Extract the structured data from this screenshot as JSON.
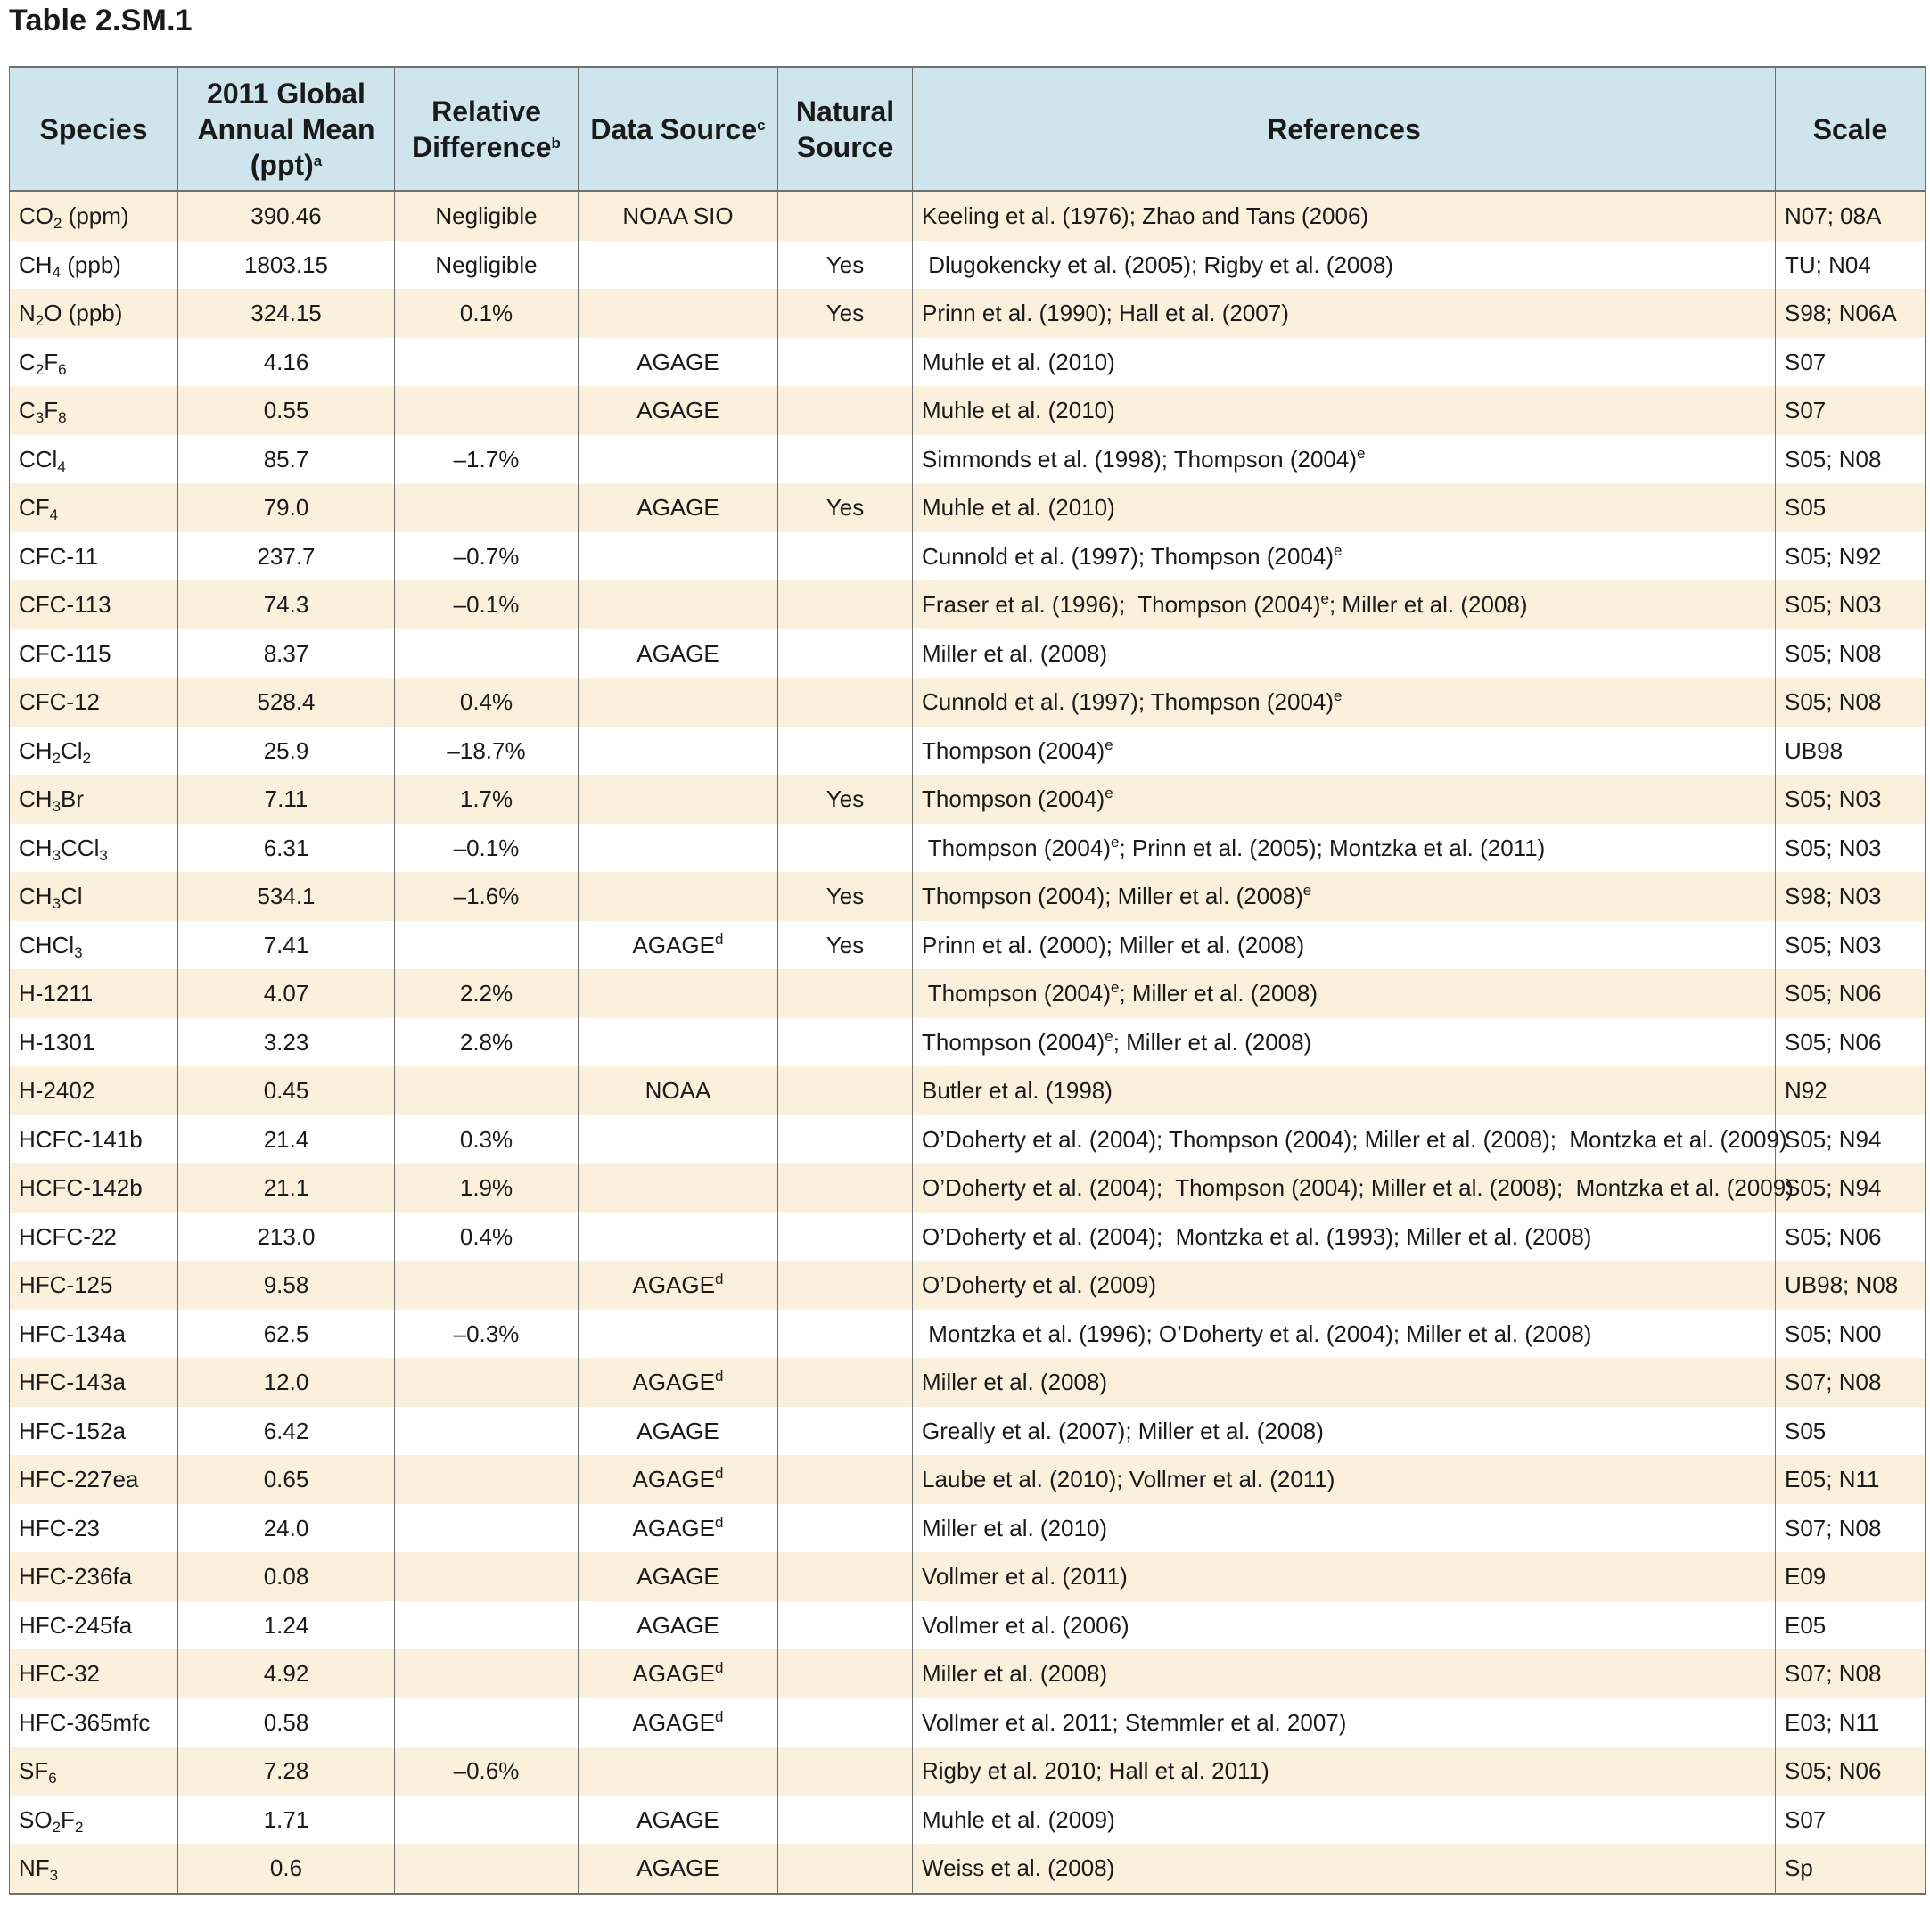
{
  "title": "Table 2.SM.1",
  "headers": {
    "species": "Species",
    "mean": "2011 Global Annual Mean (ppt)",
    "mean_sup": "a",
    "reldiff": "Relative Difference",
    "reldiff_sup": "b",
    "source": "Data Source",
    "source_sup": "c",
    "natural": "Natural Source",
    "refs": "References",
    "scale": "Scale"
  },
  "rows": [
    {
      "species": [
        "CO",
        {
          "sub": "2"
        },
        " (ppm)"
      ],
      "mean": "390.46",
      "reldiff": "Negligible",
      "source": [
        "NOAA SIO"
      ],
      "natural": "",
      "refs": [
        "Keeling et al. (1976); Zhao and Tans (2006)"
      ],
      "scale": "N07; 08A"
    },
    {
      "species": [
        "CH",
        {
          "sub": "4"
        },
        " (ppb)"
      ],
      "mean": "1803.15",
      "reldiff": "Negligible",
      "source": [
        ""
      ],
      "natural": "Yes",
      "refs": [
        " Dlugokencky et al. (2005); Rigby et al. (2008)"
      ],
      "scale": "TU; N04"
    },
    {
      "species": [
        "N",
        {
          "sub": "2"
        },
        "O (ppb)"
      ],
      "mean": "324.15",
      "reldiff": "0.1%",
      "source": [
        ""
      ],
      "natural": "Yes",
      "refs": [
        "Prinn et al. (1990); Hall et al. (2007)"
      ],
      "scale": "S98; N06A"
    },
    {
      "species": [
        "C",
        {
          "sub": "2"
        },
        "F",
        {
          "sub": "6"
        }
      ],
      "mean": "4.16",
      "reldiff": "",
      "source": [
        "AGAGE"
      ],
      "natural": "",
      "refs": [
        "Muhle et al. (2010)"
      ],
      "scale": "S07"
    },
    {
      "species": [
        "C",
        {
          "sub": "3"
        },
        "F",
        {
          "sub": "8"
        }
      ],
      "mean": "0.55",
      "reldiff": "",
      "source": [
        "AGAGE"
      ],
      "natural": "",
      "refs": [
        "Muhle et al. (2010)"
      ],
      "scale": "S07"
    },
    {
      "species": [
        "CCl",
        {
          "sub": "4"
        }
      ],
      "mean": "85.7",
      "reldiff": "–1.7%",
      "source": [
        ""
      ],
      "natural": "",
      "refs": [
        "Simmonds et al. (1998); Thompson (2004)",
        {
          "sup": "e"
        }
      ],
      "scale": "S05; N08"
    },
    {
      "species": [
        "CF",
        {
          "sub": "4"
        }
      ],
      "mean": "79.0",
      "reldiff": "",
      "source": [
        "AGAGE"
      ],
      "natural": "Yes",
      "refs": [
        "Muhle et al. (2010)"
      ],
      "scale": "S05"
    },
    {
      "species": [
        "CFC-11"
      ],
      "mean": "237.7",
      "reldiff": "–0.7%",
      "source": [
        ""
      ],
      "natural": "",
      "refs": [
        "Cunnold et al. (1997); Thompson (2004)",
        {
          "sup": "e"
        }
      ],
      "scale": "S05; N92"
    },
    {
      "species": [
        "CFC-113"
      ],
      "mean": "74.3",
      "reldiff": "–0.1%",
      "source": [
        ""
      ],
      "natural": "",
      "refs": [
        "Fraser et al. (1996);  Thompson (2004)",
        {
          "sup": "e"
        },
        "; Miller et al. (2008)"
      ],
      "scale": "S05; N03"
    },
    {
      "species": [
        "CFC-115"
      ],
      "mean": "8.37",
      "reldiff": "",
      "source": [
        "AGAGE"
      ],
      "natural": "",
      "refs": [
        "Miller et al. (2008)"
      ],
      "scale": "S05; N08"
    },
    {
      "species": [
        "CFC-12"
      ],
      "mean": "528.4",
      "reldiff": "0.4%",
      "source": [
        ""
      ],
      "natural": "",
      "refs": [
        "Cunnold et al. (1997); Thompson (2004)",
        {
          "sup": "e"
        }
      ],
      "scale": "S05; N08"
    },
    {
      "species": [
        "CH",
        {
          "sub": "2"
        },
        "Cl",
        {
          "sub": "2"
        }
      ],
      "mean": "25.9",
      "reldiff": "–18.7%",
      "source": [
        ""
      ],
      "natural": "",
      "refs": [
        "Thompson (2004)",
        {
          "sup": "e"
        }
      ],
      "scale": "UB98"
    },
    {
      "species": [
        "CH",
        {
          "sub": "3"
        },
        "Br"
      ],
      "mean": "7.11",
      "reldiff": "1.7%",
      "source": [
        ""
      ],
      "natural": "Yes",
      "refs": [
        "Thompson (2004)",
        {
          "sup": "e"
        }
      ],
      "scale": "S05; N03"
    },
    {
      "species": [
        "CH",
        {
          "sub": "3"
        },
        "CCl",
        {
          "sub": "3"
        }
      ],
      "mean": "6.31",
      "reldiff": "–0.1%",
      "source": [
        ""
      ],
      "natural": "",
      "refs": [
        " Thompson (2004)",
        {
          "sup": "e"
        },
        "; Prinn et al. (2005); Montzka et al. (2011)"
      ],
      "scale": "S05; N03"
    },
    {
      "species": [
        "CH",
        {
          "sub": "3"
        },
        "Cl"
      ],
      "mean": "534.1",
      "reldiff": "–1.6%",
      "source": [
        ""
      ],
      "natural": "Yes",
      "refs": [
        "Thompson (2004); Miller et al. (2008)",
        {
          "sup": "e"
        }
      ],
      "scale": "S98; N03"
    },
    {
      "species": [
        "CHCl",
        {
          "sub": "3"
        }
      ],
      "mean": "7.41",
      "reldiff": "",
      "source": [
        "AGAGE",
        {
          "sup": "d"
        }
      ],
      "natural": "Yes",
      "refs": [
        "Prinn et al. (2000); Miller et al. (2008)"
      ],
      "scale": "S05; N03"
    },
    {
      "species": [
        "H-1211"
      ],
      "mean": "4.07",
      "reldiff": "2.2%",
      "source": [
        ""
      ],
      "natural": "",
      "refs": [
        " Thompson (2004)",
        {
          "sup": "e"
        },
        "; Miller et al. (2008)"
      ],
      "scale": "S05; N06"
    },
    {
      "species": [
        "H-1301"
      ],
      "mean": "3.23",
      "reldiff": "2.8%",
      "source": [
        ""
      ],
      "natural": "",
      "refs": [
        "Thompson (2004)",
        {
          "sup": "e"
        },
        "; Miller et al. (2008)"
      ],
      "scale": "S05; N06"
    },
    {
      "species": [
        "H-2402"
      ],
      "mean": "0.45",
      "reldiff": "",
      "source": [
        "NOAA"
      ],
      "natural": "",
      "refs": [
        "Butler et al. (1998)"
      ],
      "scale": "N92"
    },
    {
      "species": [
        "HCFC-141b"
      ],
      "mean": "21.4",
      "reldiff": "0.3%",
      "source": [
        ""
      ],
      "natural": "",
      "refs": [
        "O’Doherty et al. (2004); Thompson (2004); Miller et al. (2008);  Montzka et al. (2009)"
      ],
      "scale": "S05; N94"
    },
    {
      "species": [
        "HCFC-142b"
      ],
      "mean": "21.1",
      "reldiff": "1.9%",
      "source": [
        ""
      ],
      "natural": "",
      "refs": [
        "O’Doherty et al. (2004);  Thompson (2004); Miller et al. (2008);  Montzka et al. (2009)"
      ],
      "scale": "S05; N94"
    },
    {
      "species": [
        "HCFC-22"
      ],
      "mean": "213.0",
      "reldiff": "0.4%",
      "source": [
        ""
      ],
      "natural": "",
      "refs": [
        "O’Doherty et al. (2004);  Montzka et al. (1993); Miller et al. (2008)"
      ],
      "scale": "S05; N06"
    },
    {
      "species": [
        "HFC-125"
      ],
      "mean": "9.58",
      "reldiff": "",
      "source": [
        "AGAGE",
        {
          "sup": "d"
        }
      ],
      "natural": "",
      "refs": [
        "O’Doherty et al. (2009)"
      ],
      "scale": "UB98; N08"
    },
    {
      "species": [
        "HFC-134a"
      ],
      "mean": "62.5",
      "reldiff": "–0.3%",
      "source": [
        ""
      ],
      "natural": "",
      "refs": [
        " Montzka et al. (1996); O’Doherty et al. (2004); Miller et al. (2008)"
      ],
      "scale": "S05; N00"
    },
    {
      "species": [
        "HFC-143a"
      ],
      "mean": "12.0",
      "reldiff": "",
      "source": [
        "AGAGE",
        {
          "sup": "d"
        }
      ],
      "natural": "",
      "refs": [
        "Miller et al. (2008)"
      ],
      "scale": "S07; N08"
    },
    {
      "species": [
        "HFC-152a"
      ],
      "mean": "6.42",
      "reldiff": "",
      "source": [
        "AGAGE"
      ],
      "natural": "",
      "refs": [
        "Greally et al. (2007); Miller et al. (2008)"
      ],
      "scale": "S05"
    },
    {
      "species": [
        "HFC-227ea"
      ],
      "mean": "0.65",
      "reldiff": "",
      "source": [
        "AGAGE",
        {
          "sup": "d"
        }
      ],
      "natural": "",
      "refs": [
        "Laube et al. (2010); Vollmer et al. (2011)"
      ],
      "scale": "E05; N11"
    },
    {
      "species": [
        "HFC-23"
      ],
      "mean": "24.0",
      "reldiff": "",
      "source": [
        "AGAGE",
        {
          "sup": "d"
        }
      ],
      "natural": "",
      "refs": [
        "Miller et al. (2010)"
      ],
      "scale": "S07; N08"
    },
    {
      "species": [
        "HFC-236fa"
      ],
      "mean": "0.08",
      "reldiff": "",
      "source": [
        "AGAGE"
      ],
      "natural": "",
      "refs": [
        "Vollmer et al. (2011)"
      ],
      "scale": "E09"
    },
    {
      "species": [
        "HFC-245fa"
      ],
      "mean": "1.24",
      "reldiff": "",
      "source": [
        "AGAGE"
      ],
      "natural": "",
      "refs": [
        "Vollmer et al. (2006)"
      ],
      "scale": "E05"
    },
    {
      "species": [
        "HFC-32"
      ],
      "mean": "4.92",
      "reldiff": "",
      "source": [
        "AGAGE",
        {
          "sup": "d"
        }
      ],
      "natural": "",
      "refs": [
        "Miller et al. (2008)"
      ],
      "scale": "S07; N08"
    },
    {
      "species": [
        "HFC-365mfc"
      ],
      "mean": "0.58",
      "reldiff": "",
      "source": [
        "AGAGE",
        {
          "sup": "d"
        }
      ],
      "natural": "",
      "refs": [
        "Vollmer et al. 2011; Stemmler et al. 2007)"
      ],
      "scale": "E03; N11"
    },
    {
      "species": [
        "SF",
        {
          "sub": "6"
        }
      ],
      "mean": "7.28",
      "reldiff": "–0.6%",
      "source": [
        ""
      ],
      "natural": "",
      "refs": [
        "Rigby et al. 2010; Hall et al. 2011)"
      ],
      "scale": "S05; N06"
    },
    {
      "species": [
        "SO",
        {
          "sub": "2"
        },
        "F",
        {
          "sub": "2"
        }
      ],
      "mean": "1.71",
      "reldiff": "",
      "source": [
        "AGAGE"
      ],
      "natural": "",
      "refs": [
        "Muhle et al. (2009)"
      ],
      "scale": "S07"
    },
    {
      "species": [
        "NF",
        {
          "sub": "3"
        }
      ],
      "mean": "0.6",
      "reldiff": "",
      "source": [
        "AGAGE"
      ],
      "natural": "",
      "refs": [
        "Weiss et al. (2008)"
      ],
      "scale": "Sp"
    }
  ]
}
